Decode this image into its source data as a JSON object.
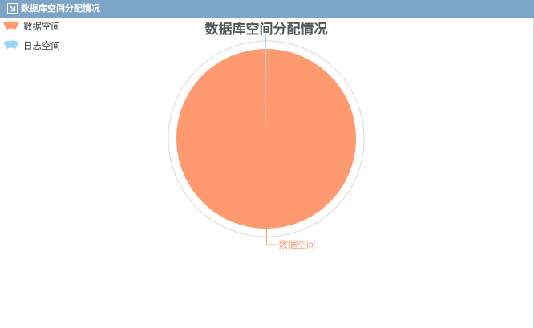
{
  "panel": {
    "title": "数据库空间分配情况",
    "icon": "collapse-arrow-icon",
    "header_color": "#7ba4c6"
  },
  "chart_data": {
    "type": "pie",
    "title": "数据库空间分配情况",
    "legend": {
      "placement": "top-left",
      "entries": [
        "数据空间",
        "日志空间"
      ]
    },
    "series": [
      {
        "name": "数据空间",
        "value": 99.9,
        "color": "#ff9970",
        "label": "数据空间"
      },
      {
        "name": "日志空间",
        "value": 0.1,
        "color": "#9ad5f8",
        "label": ""
      }
    ],
    "outer_ring": true,
    "label_lines": true
  }
}
